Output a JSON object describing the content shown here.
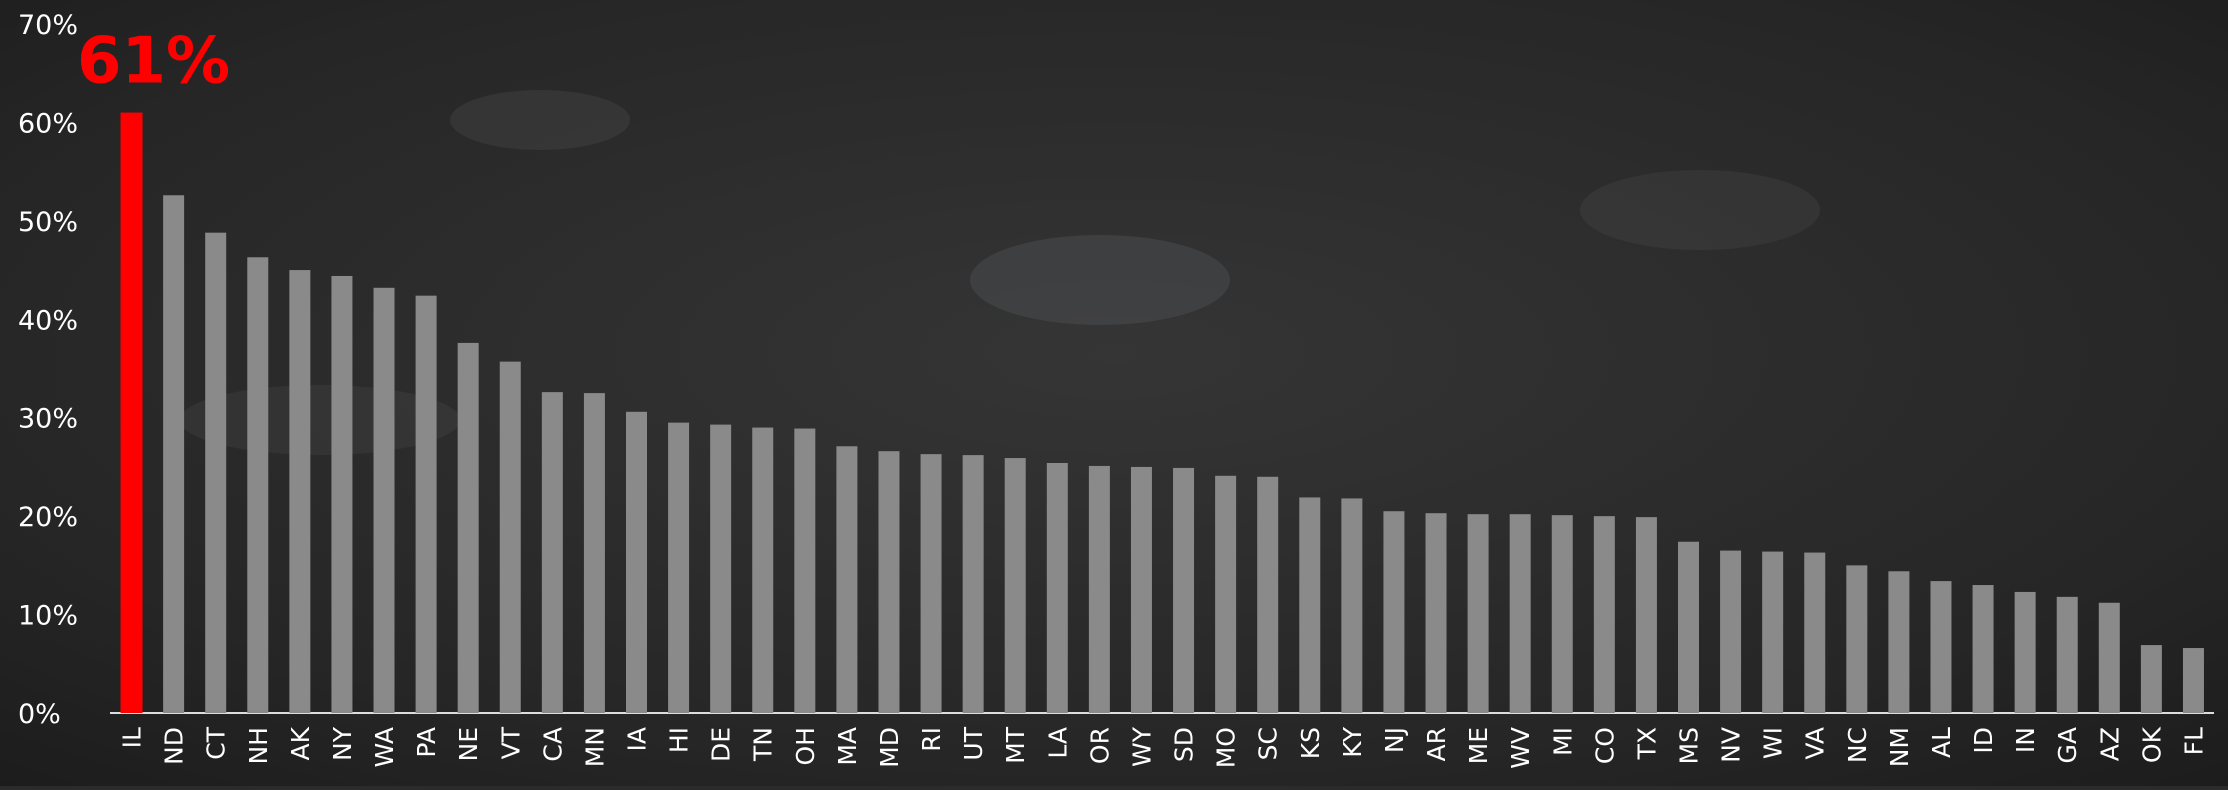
{
  "chart_data": {
    "type": "bar",
    "categories": [
      "IL",
      "ND",
      "CT",
      "NH",
      "AK",
      "NY",
      "WA",
      "PA",
      "NE",
      "VT",
      "CA",
      "MN",
      "IA",
      "HI",
      "DE",
      "TN",
      "OH",
      "MA",
      "MD",
      "RI",
      "UT",
      "MT",
      "LA",
      "OR",
      "WY",
      "SD",
      "MO",
      "SC",
      "KS",
      "KY",
      "NJ",
      "AR",
      "ME",
      "WV",
      "MI",
      "CO",
      "TX",
      "MS",
      "NV",
      "WI",
      "VA",
      "NC",
      "NM",
      "AL",
      "ID",
      "IN",
      "GA",
      "AZ",
      "OK",
      "FL"
    ],
    "values": [
      61,
      52.6,
      48.8,
      46.3,
      45.0,
      44.4,
      43.2,
      42.4,
      37.6,
      35.7,
      32.6,
      32.5,
      30.6,
      29.5,
      29.3,
      29.0,
      28.9,
      27.1,
      26.6,
      26.3,
      26.2,
      25.9,
      25.4,
      25.1,
      25.0,
      24.9,
      24.1,
      24.0,
      21.9,
      21.8,
      20.5,
      20.3,
      20.2,
      20.2,
      20.1,
      20.0,
      19.9,
      17.4,
      16.5,
      16.4,
      16.3,
      15.0,
      14.4,
      13.4,
      13.0,
      12.3,
      11.8,
      11.2,
      6.9,
      6.6
    ],
    "highlight_index": 0,
    "highlight_label": "61%",
    "ylim": [
      0,
      70
    ],
    "yticks": [
      "0%",
      "10%",
      "20%",
      "30%",
      "40%",
      "50%",
      "60%",
      "70%"
    ],
    "grid": false,
    "colors": {
      "background": "#2b2b2b",
      "bar": "#8a8a8a",
      "highlight": "#ff0000",
      "text": "#ffffff",
      "axis": "#dddddd"
    }
  }
}
